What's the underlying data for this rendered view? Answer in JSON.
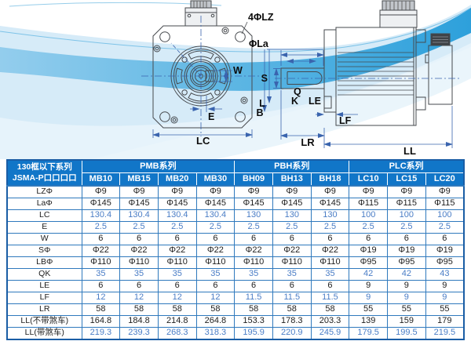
{
  "diagram": {
    "labels": {
      "lz": "4ΦLZ",
      "la": "ΦLa",
      "w": "W",
      "e": "E",
      "lc": "LC",
      "s": "S",
      "q": "Q",
      "k": "K",
      "le": "LE",
      "l": "L",
      "b": "B",
      "lf": "LF",
      "lr": "LR",
      "ll": "LL"
    }
  },
  "table": {
    "corner": [
      "130框以下系列",
      "JSMA-P口口口口"
    ],
    "series": [
      {
        "name": "PMB系列",
        "models": [
          "MB10",
          "MB15",
          "MB20",
          "MB30"
        ]
      },
      {
        "name": "PBH系列",
        "models": [
          "BH09",
          "BH13",
          "BH18"
        ]
      },
      {
        "name": "PLC系列",
        "models": [
          "LC10",
          "LC15",
          "LC20"
        ]
      }
    ],
    "rows": [
      {
        "label": "LZΦ",
        "blue": false,
        "values": [
          "Φ9",
          "Φ9",
          "Φ9",
          "Φ9",
          "Φ9",
          "Φ9",
          "Φ9",
          "Φ9",
          "Φ9",
          "Φ9"
        ]
      },
      {
        "label": "LaΦ",
        "blue": false,
        "values": [
          "Φ145",
          "Φ145",
          "Φ145",
          "Φ145",
          "Φ145",
          "Φ145",
          "Φ145",
          "Φ115",
          "Φ115",
          "Φ115"
        ]
      },
      {
        "label": "LC",
        "blue": true,
        "values": [
          "130.4",
          "130.4",
          "130.4",
          "130.4",
          "130",
          "130",
          "130",
          "100",
          "100",
          "100"
        ]
      },
      {
        "label": "E",
        "blue": true,
        "values": [
          "2.5",
          "2.5",
          "2.5",
          "2.5",
          "2.5",
          "2.5",
          "2.5",
          "2.5",
          "2.5",
          "2.5"
        ]
      },
      {
        "label": "W",
        "blue": false,
        "values": [
          "6",
          "6",
          "6",
          "6",
          "6",
          "6",
          "6",
          "6",
          "6",
          "6"
        ]
      },
      {
        "label": "SΦ",
        "blue": false,
        "values": [
          "Φ22",
          "Φ22",
          "Φ22",
          "Φ22",
          "Φ22",
          "Φ22",
          "Φ22",
          "Φ19",
          "Φ19",
          "Φ19"
        ]
      },
      {
        "label": "LBΦ",
        "blue": false,
        "values": [
          "Φ110",
          "Φ110",
          "Φ110",
          "Φ110",
          "Φ110",
          "Φ110",
          "Φ110",
          "Φ95",
          "Φ95",
          "Φ95"
        ]
      },
      {
        "label": "QK",
        "blue": true,
        "values": [
          "35",
          "35",
          "35",
          "35",
          "35",
          "35",
          "35",
          "42",
          "42",
          "43"
        ]
      },
      {
        "label": "LE",
        "blue": false,
        "values": [
          "6",
          "6",
          "6",
          "6",
          "6",
          "6",
          "6",
          "9",
          "9",
          "9"
        ]
      },
      {
        "label": "LF",
        "blue": true,
        "values": [
          "12",
          "12",
          "12",
          "12",
          "11.5",
          "11.5",
          "11.5",
          "9",
          "9",
          "9"
        ]
      },
      {
        "label": "LR",
        "blue": false,
        "values": [
          "58",
          "58",
          "58",
          "58",
          "58",
          "58",
          "58",
          "55",
          "55",
          "55"
        ]
      },
      {
        "label": "LL(不带煞车)",
        "blue": false,
        "values": [
          "164.8",
          "184.8",
          "214.8",
          "264.8",
          "153.3",
          "178.3",
          "203.3",
          "139",
          "159",
          "179"
        ]
      },
      {
        "label": "LL(带煞车)",
        "blue": true,
        "values": [
          "219.3",
          "239.3",
          "268.3",
          "318.3",
          "195.9",
          "220.9",
          "245.9",
          "179.5",
          "199.5",
          "219.5"
        ]
      }
    ]
  },
  "colors": {
    "header_bg": "#1176c8",
    "table_border": "#2f79bd",
    "value_blue": "#4a7dc6",
    "value_dark": "#1d1d1d",
    "wave_bright": "#1b98d8",
    "wave_pale": "#d6ebf8",
    "dimension_line": "#3a64ae"
  }
}
